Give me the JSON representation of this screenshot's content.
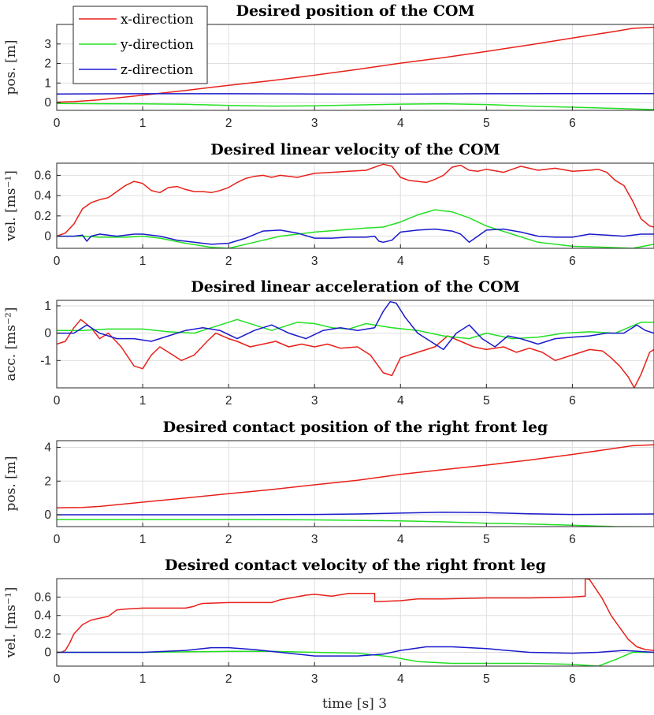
{
  "colors": {
    "x": "#e8201a",
    "y": "#22e022",
    "z": "#1a1acc",
    "grid": "#dfdfdf",
    "axis": "#262626"
  },
  "legend": {
    "placement": "top-left",
    "entries": [
      "x-direction",
      "y-direction",
      "z-direction"
    ]
  },
  "xlabel": "time [s] 3",
  "chart_data": [
    {
      "type": "line",
      "title": "Desired position of the COM",
      "ylabel": "pos. [m]",
      "xlim": [
        0,
        6.95
      ],
      "ylim": [
        -0.4,
        4.0
      ],
      "xticks": [
        0,
        1,
        2,
        3,
        4,
        5,
        6
      ],
      "yticks": [
        0,
        1,
        2,
        3
      ],
      "grid": true,
      "series": [
        {
          "name": "x-direction",
          "color": "#e8201a",
          "x": [
            0,
            0.2,
            0.5,
            1.0,
            1.5,
            2.0,
            2.5,
            3.0,
            3.5,
            4.0,
            4.5,
            5.0,
            5.5,
            6.0,
            6.5,
            6.7,
            6.95
          ],
          "y": [
            0.02,
            0.05,
            0.14,
            0.38,
            0.62,
            0.88,
            1.12,
            1.4,
            1.7,
            2.02,
            2.3,
            2.62,
            2.95,
            3.3,
            3.65,
            3.8,
            3.86
          ]
        },
        {
          "name": "y-direction",
          "color": "#22e022",
          "x": [
            0,
            0.5,
            1.0,
            1.5,
            2.0,
            2.5,
            3.0,
            3.5,
            4.0,
            4.5,
            5.0,
            5.5,
            6.0,
            6.5,
            6.95
          ],
          "y": [
            -0.05,
            -0.06,
            -0.07,
            -0.09,
            -0.15,
            -0.18,
            -0.17,
            -0.12,
            -0.08,
            -0.06,
            -0.1,
            -0.18,
            -0.24,
            -0.3,
            -0.36
          ]
        },
        {
          "name": "z-direction",
          "color": "#1a1acc",
          "x": [
            0,
            1.0,
            2.0,
            3.0,
            4.0,
            5.0,
            6.0,
            6.95
          ],
          "y": [
            0.44,
            0.45,
            0.45,
            0.44,
            0.43,
            0.45,
            0.46,
            0.46
          ]
        }
      ]
    },
    {
      "type": "line",
      "title": "Desired linear velocity of the COM",
      "ylabel": "vel. [ms⁻¹]",
      "xlim": [
        0,
        6.95
      ],
      "ylim": [
        -0.12,
        0.72
      ],
      "xticks": [
        0,
        1,
        2,
        3,
        4,
        5,
        6
      ],
      "yticks": [
        0,
        0.2,
        0.4,
        0.6
      ],
      "grid": true,
      "series": [
        {
          "name": "x-direction",
          "color": "#e8201a",
          "x": [
            0,
            0.1,
            0.2,
            0.3,
            0.4,
            0.5,
            0.6,
            0.7,
            0.8,
            0.9,
            1.0,
            1.1,
            1.2,
            1.3,
            1.4,
            1.5,
            1.6,
            1.7,
            1.8,
            1.9,
            2.0,
            2.1,
            2.2,
            2.3,
            2.4,
            2.5,
            2.6,
            2.8,
            3.0,
            3.2,
            3.4,
            3.6,
            3.7,
            3.8,
            3.9,
            4.0,
            4.1,
            4.2,
            4.3,
            4.4,
            4.5,
            4.6,
            4.7,
            4.8,
            4.9,
            5.0,
            5.2,
            5.4,
            5.6,
            5.8,
            6.0,
            6.2,
            6.3,
            6.4,
            6.5,
            6.6,
            6.7,
            6.8,
            6.9,
            6.95
          ],
          "y": [
            0,
            0.03,
            0.12,
            0.27,
            0.33,
            0.36,
            0.38,
            0.44,
            0.5,
            0.54,
            0.52,
            0.45,
            0.43,
            0.48,
            0.49,
            0.46,
            0.44,
            0.44,
            0.43,
            0.45,
            0.48,
            0.53,
            0.57,
            0.59,
            0.6,
            0.58,
            0.6,
            0.58,
            0.62,
            0.63,
            0.64,
            0.65,
            0.68,
            0.71,
            0.69,
            0.58,
            0.55,
            0.54,
            0.53,
            0.56,
            0.6,
            0.68,
            0.7,
            0.65,
            0.64,
            0.66,
            0.63,
            0.69,
            0.65,
            0.67,
            0.64,
            0.65,
            0.66,
            0.63,
            0.55,
            0.5,
            0.35,
            0.17,
            0.1,
            0.09
          ]
        },
        {
          "name": "y-direction",
          "color": "#22e022",
          "x": [
            0,
            0.3,
            0.5,
            0.8,
            1.0,
            1.2,
            1.5,
            1.8,
            2.0,
            2.3,
            2.6,
            3.0,
            3.3,
            3.6,
            3.8,
            4.0,
            4.2,
            4.4,
            4.6,
            4.8,
            5.0,
            5.3,
            5.6,
            6.0,
            6.4,
            6.7,
            6.95
          ],
          "y": [
            0,
            0.0,
            -0.01,
            -0.01,
            0.0,
            -0.02,
            -0.07,
            -0.11,
            -0.12,
            -0.06,
            0.0,
            0.04,
            0.06,
            0.08,
            0.09,
            0.14,
            0.21,
            0.26,
            0.24,
            0.18,
            0.1,
            0.02,
            -0.06,
            -0.1,
            -0.11,
            -0.12,
            -0.08
          ]
        },
        {
          "name": "z-direction",
          "color": "#1a1acc",
          "x": [
            0,
            0.2,
            0.3,
            0.35,
            0.4,
            0.5,
            0.7,
            0.9,
            1.0,
            1.2,
            1.4,
            1.6,
            1.8,
            2.0,
            2.2,
            2.4,
            2.6,
            2.8,
            3.0,
            3.2,
            3.4,
            3.6,
            3.7,
            3.75,
            3.8,
            3.9,
            4.0,
            4.2,
            4.4,
            4.6,
            4.7,
            4.8,
            5.0,
            5.2,
            5.4,
            5.6,
            5.8,
            6.0,
            6.2,
            6.4,
            6.6,
            6.8,
            6.95
          ],
          "y": [
            0,
            0.0,
            0.01,
            -0.05,
            0.0,
            0.02,
            0.0,
            0.02,
            0.02,
            0.0,
            -0.04,
            -0.06,
            -0.08,
            -0.07,
            -0.02,
            0.05,
            0.06,
            0.03,
            -0.02,
            -0.02,
            -0.01,
            -0.01,
            0.0,
            -0.05,
            -0.06,
            -0.04,
            0.04,
            0.06,
            0.07,
            0.05,
            0.02,
            -0.06,
            0.06,
            0.07,
            0.04,
            0.0,
            -0.01,
            -0.01,
            0.02,
            0.01,
            0.0,
            0.02,
            0.02
          ]
        }
      ]
    },
    {
      "type": "line",
      "title": "Desired linear acceleration of the COM",
      "ylabel": "acc. [ms⁻²]",
      "xlim": [
        0,
        6.95
      ],
      "ylim": [
        -2.0,
        1.2
      ],
      "xticks": [
        0,
        1,
        2,
        3,
        4,
        5,
        6
      ],
      "yticks": [
        -1,
        0,
        1
      ],
      "grid": true,
      "series": [
        {
          "name": "x-direction",
          "color": "#e8201a",
          "x": [
            0,
            0.1,
            0.2,
            0.28,
            0.4,
            0.5,
            0.6,
            0.75,
            0.9,
            1.0,
            1.1,
            1.2,
            1.3,
            1.45,
            1.6,
            1.75,
            1.85,
            2.0,
            2.1,
            2.25,
            2.4,
            2.55,
            2.7,
            2.85,
            3.0,
            3.15,
            3.3,
            3.5,
            3.65,
            3.8,
            3.9,
            4.0,
            4.2,
            4.4,
            4.55,
            4.7,
            4.85,
            5.0,
            5.2,
            5.35,
            5.5,
            5.65,
            5.8,
            6.0,
            6.2,
            6.35,
            6.45,
            6.55,
            6.65,
            6.72,
            6.8,
            6.9,
            6.95
          ],
          "y": [
            -0.4,
            -0.3,
            0.2,
            0.5,
            0.2,
            -0.2,
            0.0,
            -0.5,
            -1.2,
            -1.3,
            -0.8,
            -0.5,
            -0.7,
            -1.0,
            -0.8,
            -0.3,
            0.0,
            -0.2,
            -0.3,
            -0.5,
            -0.4,
            -0.3,
            -0.5,
            -0.4,
            -0.5,
            -0.4,
            -0.55,
            -0.5,
            -0.8,
            -1.45,
            -1.55,
            -0.9,
            -0.7,
            -0.5,
            -0.1,
            -0.3,
            -0.5,
            -0.6,
            -0.5,
            -0.7,
            -0.55,
            -0.7,
            -1.0,
            -0.8,
            -0.6,
            -0.65,
            -0.9,
            -1.2,
            -1.6,
            -2.0,
            -1.5,
            -0.7,
            -0.6
          ]
        },
        {
          "name": "y-direction",
          "color": "#22e022",
          "x": [
            0,
            0.3,
            0.6,
            1.0,
            1.3,
            1.6,
            1.8,
            2.1,
            2.3,
            2.5,
            2.8,
            3.0,
            3.2,
            3.4,
            3.6,
            3.9,
            4.2,
            4.5,
            4.8,
            5.0,
            5.3,
            5.6,
            5.9,
            6.2,
            6.5,
            6.8,
            6.95
          ],
          "y": [
            0.1,
            0.1,
            0.15,
            0.15,
            0.05,
            0.0,
            0.2,
            0.5,
            0.3,
            0.1,
            0.4,
            0.35,
            0.2,
            0.15,
            0.35,
            0.2,
            0.1,
            -0.1,
            -0.2,
            0.0,
            -0.2,
            -0.15,
            0.0,
            0.05,
            0.0,
            0.4,
            0.4
          ]
        },
        {
          "name": "z-direction",
          "color": "#1a1acc",
          "x": [
            0,
            0.2,
            0.35,
            0.5,
            0.7,
            0.9,
            1.1,
            1.3,
            1.5,
            1.7,
            1.9,
            2.1,
            2.3,
            2.5,
            2.7,
            2.9,
            3.1,
            3.3,
            3.5,
            3.7,
            3.8,
            3.88,
            3.95,
            4.05,
            4.2,
            4.35,
            4.5,
            4.65,
            4.8,
            4.95,
            5.1,
            5.25,
            5.4,
            5.6,
            5.8,
            6.0,
            6.2,
            6.4,
            6.6,
            6.75,
            6.85,
            6.95
          ],
          "y": [
            0.0,
            0.0,
            0.3,
            0.0,
            -0.2,
            -0.2,
            -0.3,
            -0.1,
            0.1,
            0.2,
            0.1,
            -0.2,
            0.1,
            0.3,
            0.0,
            -0.2,
            0.1,
            0.2,
            0.1,
            0.2,
            0.8,
            1.15,
            1.1,
            0.6,
            0.0,
            -0.3,
            -0.6,
            0.0,
            0.3,
            -0.2,
            -0.5,
            -0.1,
            -0.2,
            -0.4,
            -0.2,
            -0.15,
            -0.1,
            0.0,
            0.0,
            0.3,
            0.1,
            0.0
          ]
        }
      ]
    },
    {
      "type": "line",
      "title": "Desired contact position of the right front leg",
      "ylabel": "pos. [m]",
      "xlim": [
        0,
        6.95
      ],
      "ylim": [
        -0.7,
        4.4
      ],
      "xticks": [
        0,
        1,
        2,
        3,
        4,
        5,
        6
      ],
      "yticks": [
        0,
        2,
        4
      ],
      "grid": true,
      "series": [
        {
          "name": "x-direction",
          "color": "#e8201a",
          "x": [
            0,
            0.3,
            0.5,
            1.0,
            1.5,
            2.0,
            2.5,
            3.0,
            3.5,
            4.0,
            4.5,
            5.0,
            5.5,
            6.0,
            6.5,
            6.7,
            6.95
          ],
          "y": [
            0.42,
            0.43,
            0.5,
            0.75,
            1.0,
            1.25,
            1.5,
            1.78,
            2.05,
            2.4,
            2.68,
            2.95,
            3.25,
            3.58,
            3.95,
            4.1,
            4.15
          ]
        },
        {
          "name": "y-direction",
          "color": "#22e022",
          "x": [
            0,
            1.0,
            2.0,
            3.0,
            3.5,
            4.0,
            4.5,
            5.0,
            5.5,
            6.0,
            6.5,
            6.95
          ],
          "y": [
            -0.28,
            -0.28,
            -0.28,
            -0.3,
            -0.33,
            -0.36,
            -0.42,
            -0.5,
            -0.55,
            -0.62,
            -0.7,
            -0.72
          ]
        },
        {
          "name": "z-direction",
          "color": "#1a1acc",
          "x": [
            0,
            1.0,
            2.0,
            3.0,
            3.5,
            4.0,
            4.5,
            5.0,
            5.5,
            6.0,
            6.5,
            6.95
          ],
          "y": [
            0.0,
            0.0,
            0.0,
            0.02,
            0.05,
            0.1,
            0.15,
            0.13,
            0.06,
            0.02,
            0.04,
            0.05
          ]
        }
      ]
    },
    {
      "type": "line",
      "title": "Desired contact velocity of the right front leg",
      "ylabel": "vel. [ms⁻¹]",
      "xlim": [
        0,
        6.95
      ],
      "ylim": [
        -0.15,
        0.8
      ],
      "xticks": [
        0,
        1,
        2,
        3,
        4,
        5,
        6
      ],
      "yticks": [
        0,
        0.2,
        0.4,
        0.6
      ],
      "grid": true,
      "series": [
        {
          "name": "x-direction",
          "color": "#e8201a",
          "x": [
            0,
            0.05,
            0.1,
            0.15,
            0.2,
            0.3,
            0.4,
            0.5,
            0.6,
            0.7,
            0.8,
            1.0,
            1.5,
            1.6,
            1.65,
            1.7,
            2.0,
            2.5,
            2.6,
            2.9,
            3.0,
            3.2,
            3.4,
            3.7,
            3.7,
            4.0,
            4.2,
            4.5,
            5.0,
            5.5,
            6.0,
            6.15,
            6.15,
            6.2,
            6.25,
            6.35,
            6.45,
            6.55,
            6.65,
            6.75,
            6.85,
            6.95
          ],
          "y": [
            0,
            0,
            0.02,
            0.1,
            0.2,
            0.3,
            0.35,
            0.37,
            0.39,
            0.46,
            0.47,
            0.48,
            0.48,
            0.5,
            0.52,
            0.53,
            0.54,
            0.54,
            0.57,
            0.62,
            0.63,
            0.61,
            0.64,
            0.64,
            0.55,
            0.56,
            0.58,
            0.58,
            0.59,
            0.59,
            0.6,
            0.61,
            0.8,
            0.79,
            0.72,
            0.58,
            0.4,
            0.27,
            0.14,
            0.06,
            0.03,
            0.02
          ]
        },
        {
          "name": "y-direction",
          "color": "#22e022",
          "x": [
            0,
            1.0,
            2.0,
            2.5,
            3.0,
            3.5,
            3.9,
            4.2,
            4.6,
            5.0,
            5.5,
            6.0,
            6.3,
            6.5,
            6.7,
            6.95
          ],
          "y": [
            0,
            0,
            0.01,
            0.01,
            0.0,
            -0.01,
            -0.05,
            -0.1,
            -0.12,
            -0.12,
            -0.12,
            -0.13,
            -0.15,
            -0.08,
            0.0,
            0.0
          ]
        },
        {
          "name": "z-direction",
          "color": "#1a1acc",
          "x": [
            0,
            1.0,
            1.5,
            1.8,
            2.0,
            2.3,
            2.6,
            3.0,
            3.5,
            3.8,
            4.0,
            4.3,
            4.6,
            5.0,
            5.5,
            6.0,
            6.3,
            6.6,
            6.95
          ],
          "y": [
            0,
            0,
            0.02,
            0.05,
            0.05,
            0.03,
            0.0,
            -0.04,
            -0.04,
            -0.02,
            0.02,
            0.06,
            0.06,
            0.04,
            0.0,
            -0.01,
            0.0,
            0.02,
            0.0
          ]
        }
      ]
    }
  ]
}
